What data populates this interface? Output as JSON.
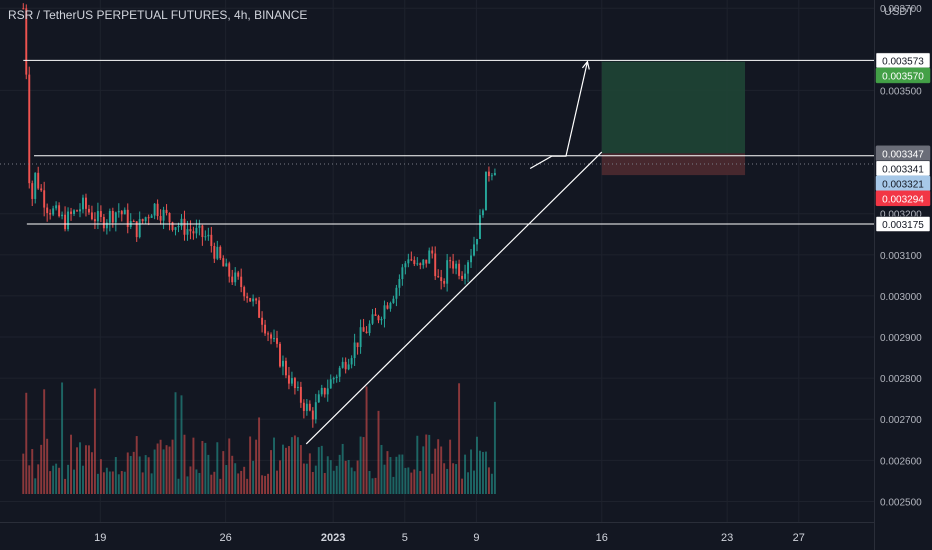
{
  "header": {
    "title": "RSR / TetherUS PERPETUAL FUTURES, 4h, BINANCE",
    "currency": "USDT"
  },
  "chart_data": {
    "type": "candlestick",
    "title": "RSR / TetherUS PERPETUAL FUTURES, 4h, BINANCE",
    "ylabel": "USDT",
    "ylim": [
      0.00245,
      0.00372
    ],
    "y_ticks": [
      "0.002500",
      "0.002600",
      "0.002700",
      "0.002800",
      "0.002900",
      "0.003000",
      "0.003100",
      "0.003200",
      "0.003500",
      "0.003700"
    ],
    "x_ticks": [
      {
        "label": "19",
        "day": 19
      },
      {
        "label": "26",
        "day": 26
      },
      {
        "label": "2023",
        "day": 32
      },
      {
        "label": "5",
        "day": 36
      },
      {
        "label": "9",
        "day": 40
      },
      {
        "label": "16",
        "day": 47
      },
      {
        "label": "23",
        "day": 54
      },
      {
        "label": "27",
        "day": 58
      }
    ],
    "x_range_days": [
      13.4,
      62.2
    ],
    "price_path": [
      [
        14.7,
        0.0037
      ],
      [
        14.9,
        0.00352
      ],
      [
        15.1,
        0.00318
      ],
      [
        15.3,
        0.0033
      ],
      [
        16.0,
        0.00322
      ],
      [
        17.0,
        0.00318
      ],
      [
        18.0,
        0.00322
      ],
      [
        19.0,
        0.00318
      ],
      [
        20.0,
        0.00321
      ],
      [
        21.0,
        0.00316
      ],
      [
        22.0,
        0.00322
      ],
      [
        23.0,
        0.00318
      ],
      [
        24.0,
        0.00316
      ],
      [
        25.0,
        0.00314
      ],
      [
        26.0,
        0.00306
      ],
      [
        27.0,
        0.00302
      ],
      [
        28.0,
        0.00295
      ],
      [
        29.0,
        0.00285
      ],
      [
        30.0,
        0.00276
      ],
      [
        30.8,
        0.00271
      ],
      [
        31.5,
        0.00277
      ],
      [
        32.5,
        0.00283
      ],
      [
        33.5,
        0.0029
      ],
      [
        34.5,
        0.00295
      ],
      [
        35.5,
        0.00302
      ],
      [
        36.2,
        0.0031
      ],
      [
        36.8,
        0.00306
      ],
      [
        37.5,
        0.00311
      ],
      [
        38.0,
        0.00301
      ],
      [
        38.5,
        0.00309
      ],
      [
        39.2,
        0.00306
      ],
      [
        39.8,
        0.00312
      ],
      [
        40.2,
        0.00318
      ],
      [
        40.6,
        0.0033
      ],
      [
        41.1,
        0.00332
      ]
    ],
    "volume_ma_label": "Volume",
    "levels": [
      {
        "price": 0.003573,
        "label": "0.003573",
        "style": "white"
      },
      {
        "price": 0.00357,
        "label": "0.003570",
        "style": "green"
      },
      {
        "price": 0.003347,
        "label": "0.003347",
        "style": "gray"
      },
      {
        "price": 0.003341,
        "label": "0.003341",
        "style": "white"
      },
      {
        "price": 0.003321,
        "label": "0.003321",
        "style": "blue"
      },
      {
        "price": 0.003294,
        "label": "0.003294",
        "style": "red"
      },
      {
        "price": 0.003175,
        "label": "0.003175",
        "style": "white"
      }
    ],
    "horizontal_lines": [
      0.003573,
      0.003341,
      0.003175
    ],
    "trendline": [
      [
        30.5,
        0.00264
      ],
      [
        47.0,
        0.00335
      ]
    ],
    "projection_path": [
      [
        43.0,
        0.00331
      ],
      [
        44.2,
        0.00334
      ],
      [
        45.0,
        0.00334
      ],
      [
        46.2,
        0.00357
      ]
    ],
    "target_zone": {
      "day_from": 47.0,
      "day_to": 55.0,
      "top": 0.00357,
      "entry": 0.003347,
      "stop": 0.003294
    },
    "colors": {
      "up": "#26a69a",
      "down": "#ef5350",
      "grid": "#1e222d",
      "line": "#ffffff",
      "profit_zone": "#1f4535",
      "loss_zone": "#4e2a30"
    }
  }
}
